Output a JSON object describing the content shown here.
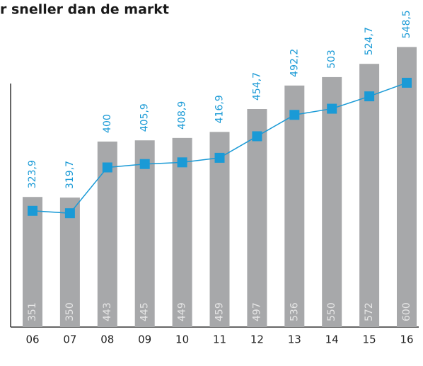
{
  "chart_data": {
    "type": "bar",
    "title": "r sneller dan de markt",
    "categories": [
      "06",
      "07",
      "08",
      "09",
      "10",
      "11",
      "12",
      "13",
      "14",
      "15",
      "16"
    ],
    "ylim": [
      135,
      631
    ],
    "y2lim": [
      120,
      644
    ],
    "series": [
      {
        "type": "bar",
        "color": "#a7a8aa",
        "values": [
          351,
          350,
          443,
          445,
          449,
          459,
          497,
          536,
          550,
          572,
          600
        ]
      },
      {
        "type": "line",
        "axis": "y2",
        "color": "#1a9ad6",
        "values": [
          323.9,
          319.7,
          400,
          405.9,
          408.9,
          416.9,
          454.7,
          492.2,
          503,
          524.7,
          548.5
        ],
        "value_labels": [
          "323,9",
          "319,7",
          "400",
          "405,9",
          "408,9",
          "416,9",
          "454,7",
          "492,2",
          "503",
          "524,7",
          "548,5"
        ]
      }
    ]
  }
}
